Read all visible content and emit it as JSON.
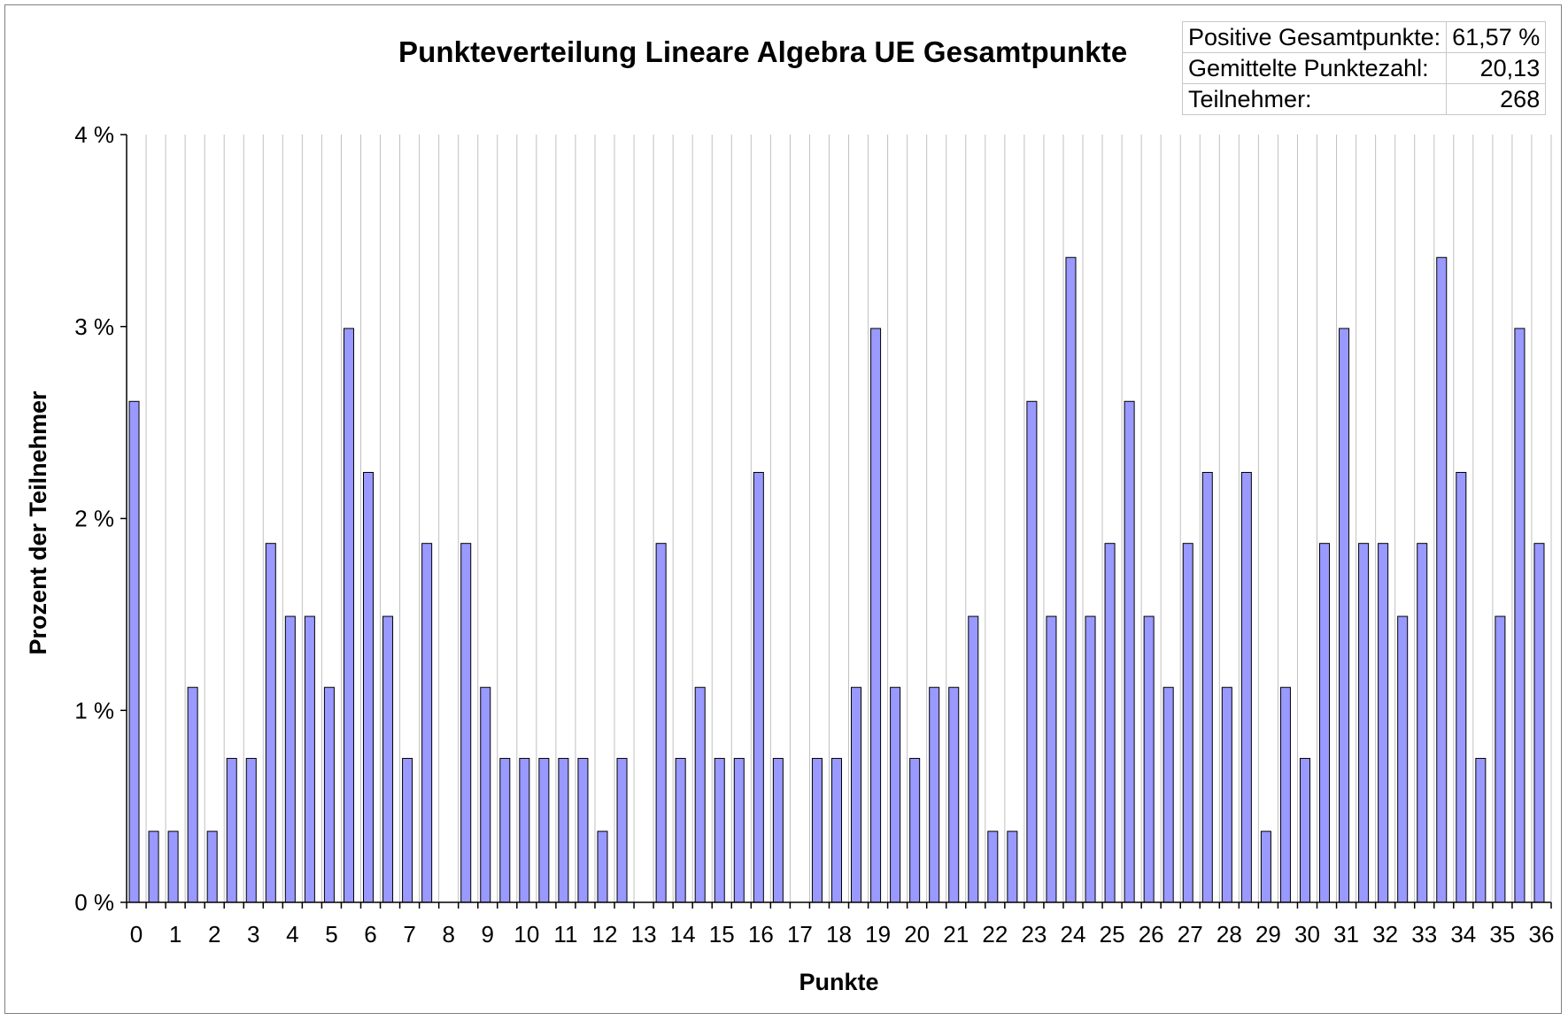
{
  "chart_data": {
    "type": "bar",
    "title": "Punkteverteilung Lineare Algebra UE Gesamtpunkte",
    "xlabel": "Punkte",
    "ylabel": "Prozent der Teilnehmer",
    "ylim": [
      0,
      4
    ],
    "yticks": [
      "0 %",
      "1 %",
      "2 %",
      "3 %",
      "4 %"
    ],
    "x_tick_labels": [
      "0",
      "1",
      "2",
      "3",
      "4",
      "5",
      "6",
      "7",
      "8",
      "9",
      "10",
      "11",
      "12",
      "13",
      "14",
      "15",
      "16",
      "17",
      "18",
      "19",
      "20",
      "21",
      "22",
      "23",
      "24",
      "25",
      "26",
      "27",
      "28",
      "29",
      "30",
      "31",
      "32",
      "33",
      "34",
      "35",
      "36"
    ],
    "x_step": 0.5,
    "values": [
      2.61,
      0.37,
      0.37,
      1.12,
      0.37,
      0.75,
      0.75,
      1.87,
      1.49,
      1.49,
      1.12,
      2.99,
      2.24,
      1.49,
      0.75,
      1.87,
      0,
      1.87,
      1.12,
      0.75,
      0.75,
      0.75,
      0.75,
      0.75,
      0.37,
      0.75,
      0,
      1.87,
      0.75,
      1.12,
      0.75,
      0.75,
      2.24,
      0.75,
      0,
      0.75,
      0.75,
      1.12,
      2.99,
      1.12,
      0.75,
      1.12,
      1.12,
      1.49,
      0.37,
      0.37,
      2.61,
      1.49,
      3.36,
      1.49,
      1.87,
      2.61,
      1.49,
      1.12,
      1.87,
      2.24,
      1.12,
      2.24,
      0.37,
      1.12,
      0.75,
      1.87,
      2.99,
      1.87,
      1.87,
      1.49,
      1.87,
      3.36,
      2.24,
      0.75,
      1.49,
      2.99,
      1.87
    ],
    "bar_color": "#9999ff",
    "bar_edge_color": "#000000",
    "grid_color": "#c0c0c0",
    "grid": true
  },
  "stats_table": {
    "rows": [
      {
        "label": "Positive Gesamtpunkte:",
        "value": "61,57 %"
      },
      {
        "label": "Gemittelte Punktezahl:",
        "value": "20,13"
      },
      {
        "label": "Teilnehmer:",
        "value": "268"
      }
    ]
  }
}
